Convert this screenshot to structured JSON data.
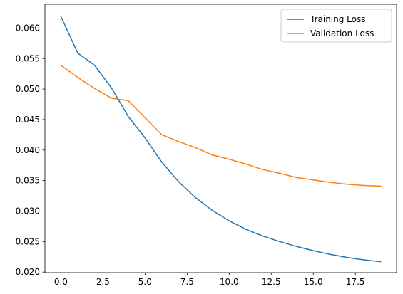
{
  "chart_data": {
    "type": "line",
    "title": "",
    "xlabel": "",
    "ylabel": "",
    "xlim": [
      -0.95,
      19.95
    ],
    "ylim": [
      0.0199,
      0.0639
    ],
    "xticks": [
      0.0,
      2.5,
      5.0,
      7.5,
      10.0,
      12.5,
      15.0,
      17.5
    ],
    "xtick_labels": [
      "0.0",
      "2.5",
      "5.0",
      "7.5",
      "10.0",
      "12.5",
      "15.0",
      "17.5"
    ],
    "yticks": [
      0.02,
      0.025,
      0.03,
      0.035,
      0.04,
      0.045,
      0.05,
      0.055,
      0.06
    ],
    "ytick_labels": [
      "0.020",
      "0.025",
      "0.030",
      "0.035",
      "0.040",
      "0.045",
      "0.050",
      "0.055",
      "0.060"
    ],
    "grid": false,
    "legend_position": "top-right",
    "x": [
      0,
      1,
      2,
      3,
      4,
      5,
      6,
      7,
      8,
      9,
      10,
      11,
      12,
      13,
      14,
      15,
      16,
      17,
      18,
      19
    ],
    "series": [
      {
        "name": "Training Loss",
        "color": "#1f77b4",
        "values": [
          0.0619,
          0.0559,
          0.0539,
          0.0502,
          0.0455,
          0.042,
          0.038,
          0.0348,
          0.0322,
          0.0301,
          0.0284,
          0.027,
          0.0259,
          0.025,
          0.0242,
          0.0235,
          0.0229,
          0.0224,
          0.022,
          0.0217
        ]
      },
      {
        "name": "Validation Loss",
        "color": "#ff7f0e",
        "values": [
          0.0539,
          0.0519,
          0.0501,
          0.0485,
          0.0481,
          0.0453,
          0.0425,
          0.0414,
          0.0404,
          0.0392,
          0.0385,
          0.0377,
          0.0368,
          0.0362,
          0.0355,
          0.0351,
          0.0347,
          0.0344,
          0.0342,
          0.0341
        ]
      }
    ]
  }
}
